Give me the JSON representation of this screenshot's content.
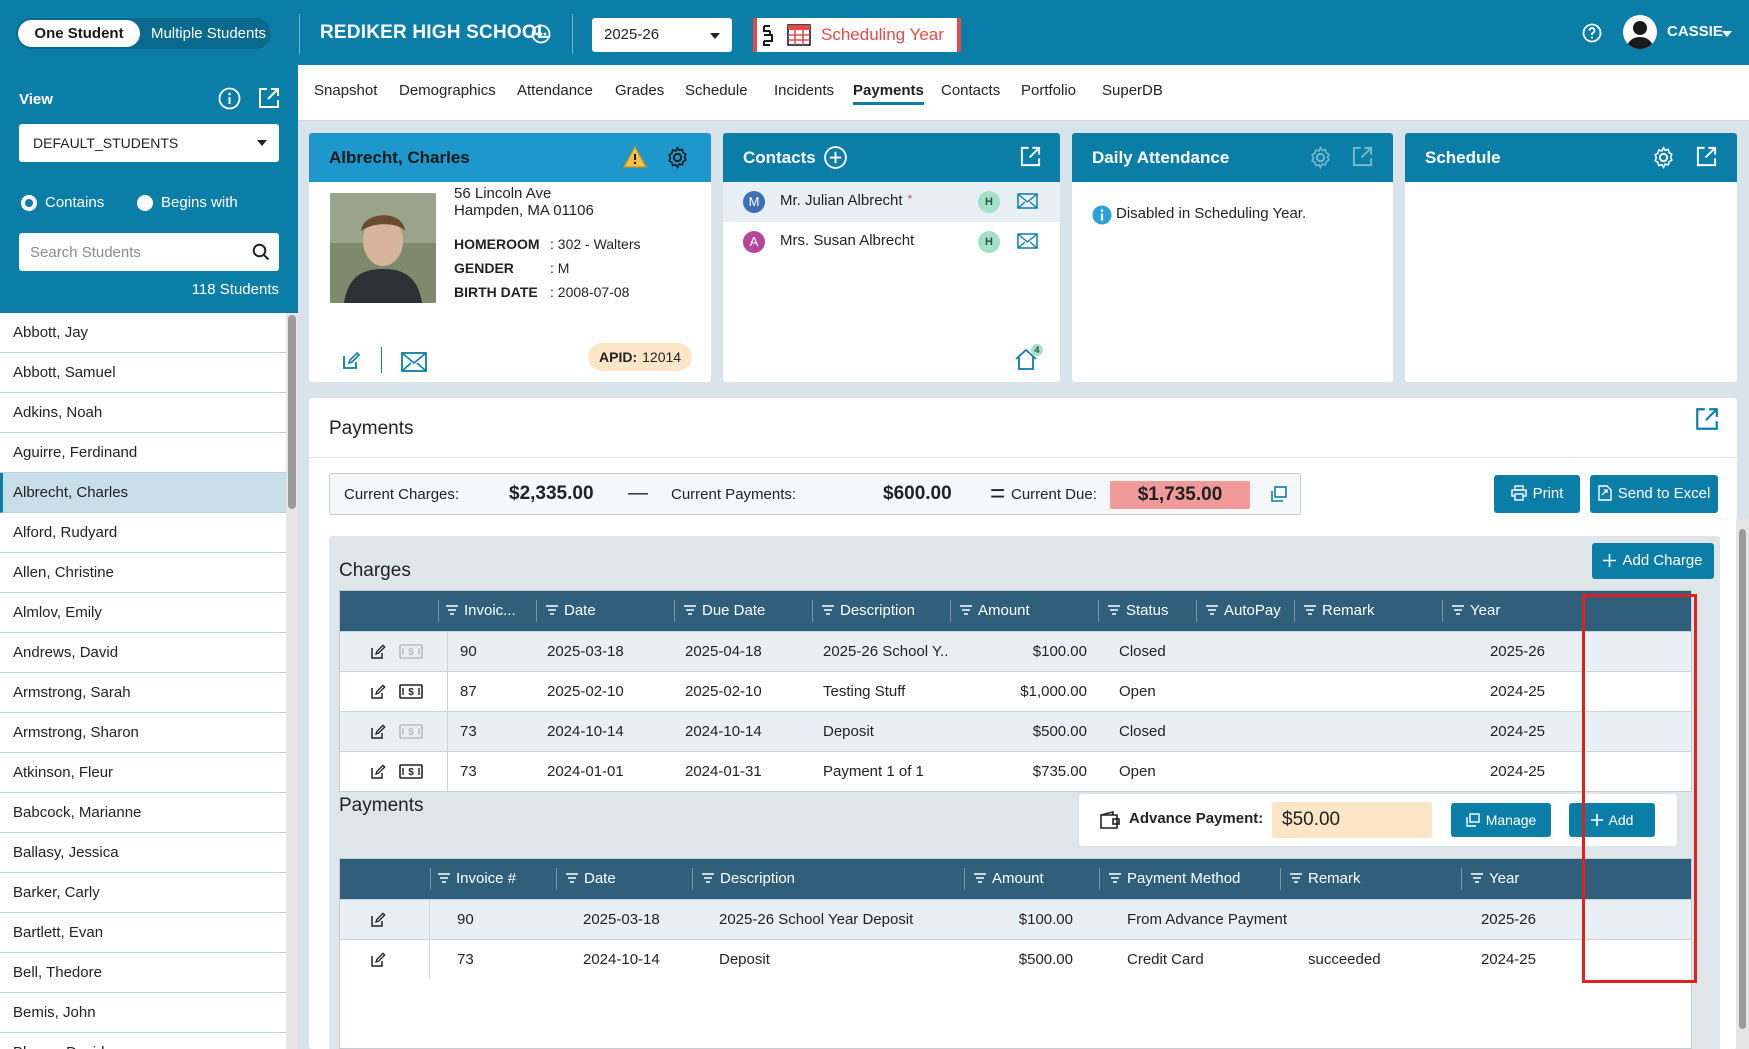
{
  "topbar": {
    "mode_active": "One Student",
    "mode_inactive": "Multiple Students",
    "school": "REDIKER HIGH SCHOOL",
    "year": "2025-26",
    "scheduling_year": "Scheduling Year",
    "user": "CASSIE"
  },
  "sidebar": {
    "view_label": "View",
    "view_value": "DEFAULT_STUDENTS",
    "radio_contains": "Contains",
    "radio_begins": "Begins with",
    "search_placeholder": "Search Students",
    "count": "118 Students",
    "students": [
      "Abbott, Jay",
      "Abbott, Samuel",
      "Adkins, Noah",
      "Aguirre, Ferdinand",
      "Albrecht, Charles",
      "Alford, Rudyard",
      "Allen, Christine",
      "Almlov, Emily",
      "Andrews, David",
      "Armstrong, Sarah",
      "Armstrong, Sharon",
      "Atkinson, Fleur",
      "Babcock, Marianne",
      "Ballasy, Jessica",
      "Barker, Carly",
      "Bartlett, Evan",
      "Bell, Thedore",
      "Bemis, John",
      "Blaney, David"
    ],
    "selected_index": 4
  },
  "tabs": [
    "Snapshot",
    "Demographics",
    "Attendance",
    "Grades",
    "Schedule",
    "Incidents",
    "Payments",
    "Contacts",
    "Portfolio",
    "SuperDB"
  ],
  "active_tab": "Payments",
  "student": {
    "name": "Albrecht, Charles",
    "address1": "56 Lincoln Ave",
    "address2": "Hampden, MA 01106",
    "homeroom_label": "HOMEROOM",
    "homeroom": ": 302 - Walters",
    "gender_label": "GENDER",
    "gender": ": M",
    "birth_label": "BIRTH DATE",
    "birth": ": 2008-07-08",
    "apid_label": "APID:",
    "apid": "12014"
  },
  "contacts": {
    "title": "Contacts",
    "items": [
      {
        "initial": "M",
        "name": "Mr. Julian Albrecht",
        "required": "*",
        "tag": "H",
        "color": "#3f6fb5"
      },
      {
        "initial": "A",
        "name": "Mrs. Susan Albrecht",
        "tag": "H",
        "color": "#b5479a"
      }
    ],
    "household_count": "4"
  },
  "daily_attendance": {
    "title": "Daily Attendance",
    "message": "Disabled in Scheduling Year."
  },
  "schedule": {
    "title": "Schedule"
  },
  "payments": {
    "title": "Payments",
    "summary": {
      "charges_label": "Current Charges:",
      "charges": "$2,335.00",
      "payments_label": "Current Payments:",
      "payments": "$600.00",
      "due_label": "Current Due:",
      "due": "$1,735.00",
      "minus": "—",
      "equals": "="
    },
    "print": "Print",
    "excel": "Send to Excel",
    "add_charge": "Add Charge",
    "charges_title": "Charges",
    "charges_columns": [
      "Invoic...",
      "Date",
      "Due Date",
      "Description",
      "Amount",
      "Status",
      "AutoPay",
      "Remark",
      "Year"
    ],
    "charges_rows": [
      {
        "invoice": "90",
        "date": "2025-03-18",
        "due": "2025-04-18",
        "desc": "2025-26 School Y...",
        "amount": "$100.00",
        "status": "Closed",
        "autopay": "",
        "remark": "",
        "year": "2025-26"
      },
      {
        "invoice": "87",
        "date": "2025-02-10",
        "due": "2025-02-10",
        "desc": "Testing Stuff",
        "amount": "$1,000.00",
        "status": "Open",
        "autopay": "",
        "remark": "",
        "year": "2024-25"
      },
      {
        "invoice": "73",
        "date": "2024-10-14",
        "due": "2024-10-14",
        "desc": "Deposit",
        "amount": "$500.00",
        "status": "Closed",
        "autopay": "",
        "remark": "",
        "year": "2024-25"
      },
      {
        "invoice": "73",
        "date": "2024-01-01",
        "due": "2024-01-31",
        "desc": "Payment 1 of 1",
        "amount": "$735.00",
        "status": "Open",
        "autopay": "",
        "remark": "",
        "year": "2024-25"
      }
    ],
    "advance_label": "Advance Payment:",
    "advance_amount": "$50.00",
    "manage": "Manage",
    "add": "Add",
    "payments_title": "Payments",
    "payments_columns": [
      "Invoice #",
      "Date",
      "Description",
      "Amount",
      "Payment Method",
      "Remark",
      "Year"
    ],
    "payments_rows": [
      {
        "invoice": "90",
        "date": "2025-03-18",
        "desc": "2025-26 School Year Deposit",
        "amount": "$100.00",
        "method": "From Advance Payment",
        "remark": "",
        "year": "2025-26"
      },
      {
        "invoice": "73",
        "date": "2024-10-14",
        "desc": "Deposit",
        "amount": "$500.00",
        "method": "Credit Card",
        "remark": "succeeded",
        "year": "2024-25"
      }
    ]
  },
  "colors": {
    "brand": "#0b7ea8",
    "grid_header": "#2f5f7b",
    "due_highlight": "#f19a9a",
    "advance_highlight": "#fde5c8",
    "annotation": "#e01f1f"
  }
}
